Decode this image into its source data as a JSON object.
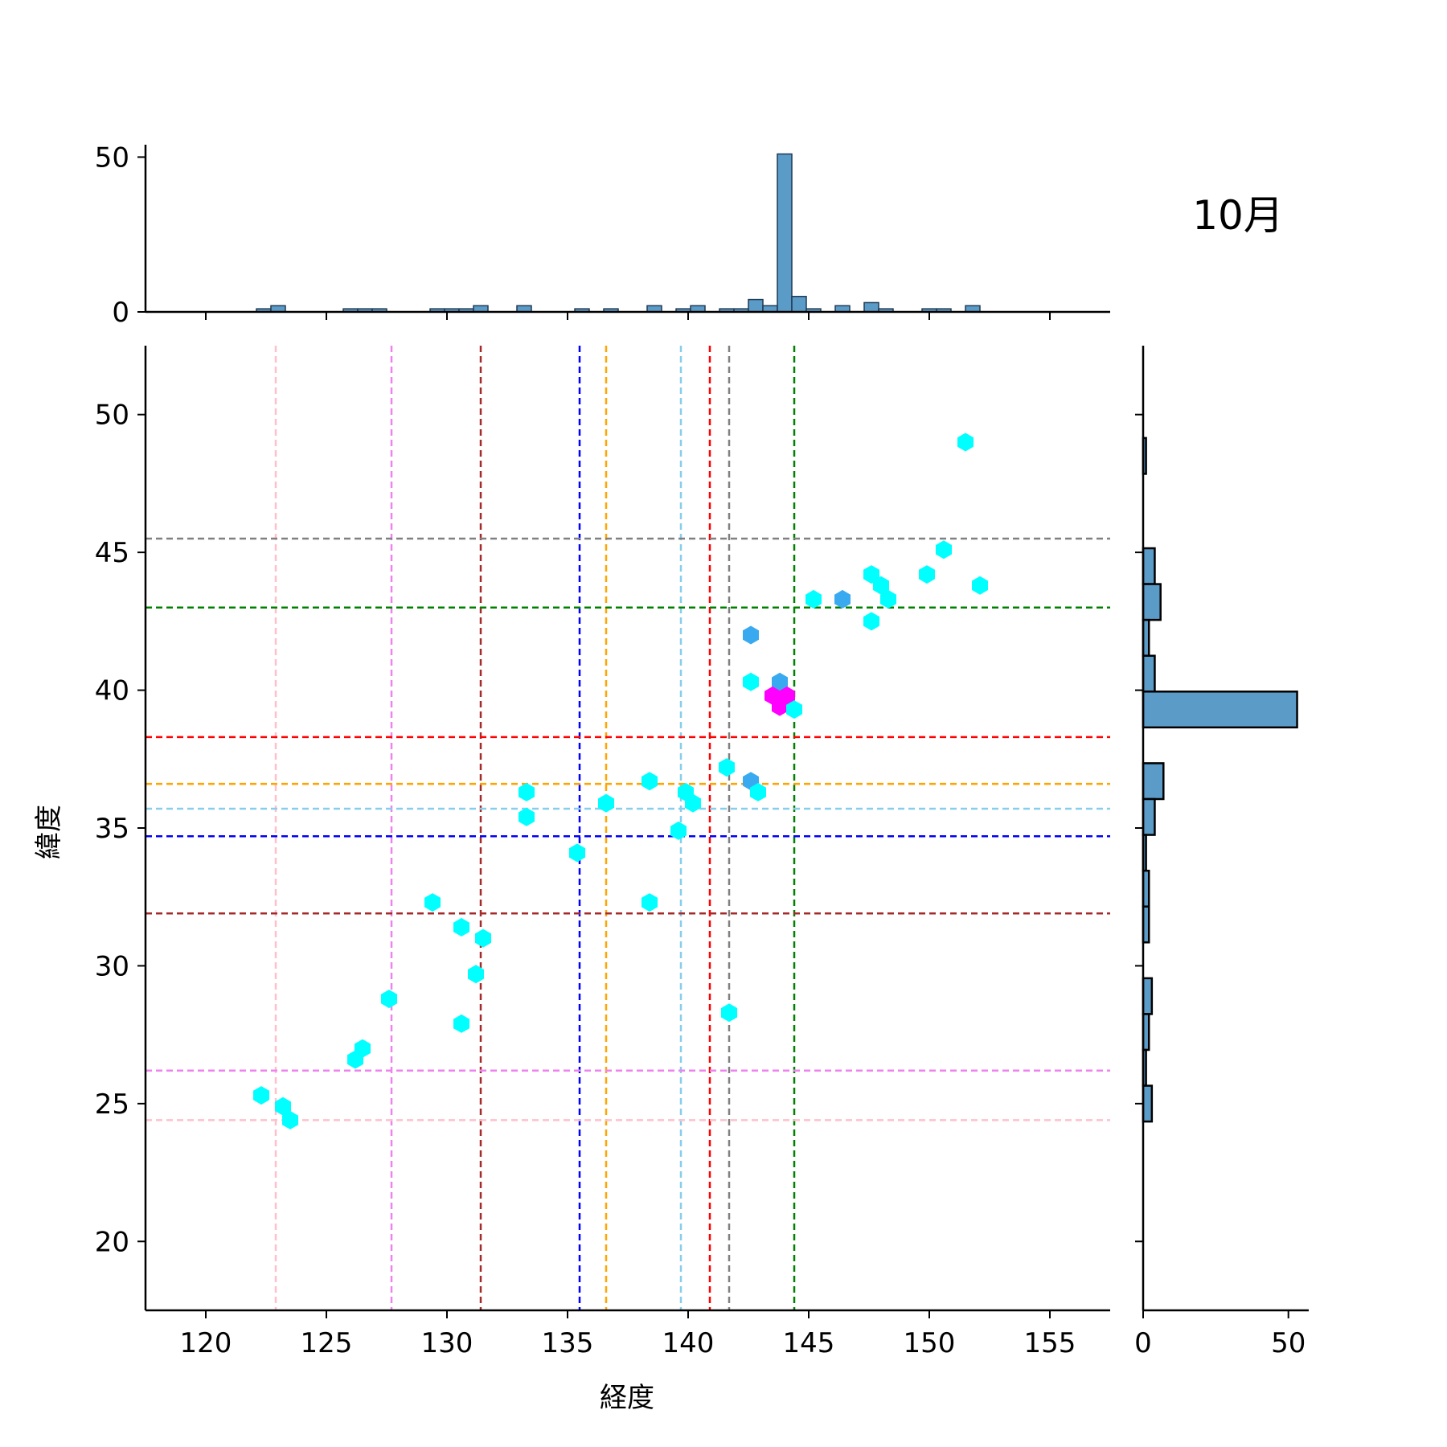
{
  "chart_data": {
    "type": "hexbin-joint",
    "title": "10月",
    "xlabel": "経度",
    "ylabel": "緯度",
    "xlim": [
      117.5,
      157.5
    ],
    "ylim": [
      17.5,
      52.5
    ],
    "x_ticks": [
      120,
      125,
      130,
      135,
      140,
      145,
      150,
      155
    ],
    "y_ticks": [
      20,
      25,
      30,
      35,
      40,
      45,
      50
    ],
    "top_hist": {
      "yticks": [
        0,
        50
      ],
      "bins": [
        [
          122.4,
          1
        ],
        [
          123.0,
          2
        ],
        [
          126.0,
          1
        ],
        [
          126.6,
          1
        ],
        [
          127.2,
          1
        ],
        [
          129.6,
          1
        ],
        [
          130.2,
          1
        ],
        [
          130.8,
          1
        ],
        [
          131.4,
          2
        ],
        [
          133.2,
          2
        ],
        [
          135.6,
          1
        ],
        [
          136.8,
          1
        ],
        [
          138.6,
          2
        ],
        [
          139.8,
          1
        ],
        [
          140.4,
          2
        ],
        [
          141.6,
          1
        ],
        [
          142.2,
          1
        ],
        [
          142.8,
          4
        ],
        [
          143.4,
          2
        ],
        [
          144.0,
          51
        ],
        [
          144.6,
          5
        ],
        [
          145.2,
          1
        ],
        [
          146.4,
          2
        ],
        [
          147.6,
          3
        ],
        [
          148.2,
          1
        ],
        [
          150.0,
          1
        ],
        [
          150.6,
          1
        ],
        [
          151.8,
          2
        ]
      ],
      "bin_width": 0.6
    },
    "right_hist": {
      "xticks": [
        0,
        50
      ],
      "bins": [
        [
          48.5,
          1
        ],
        [
          44.5,
          4
        ],
        [
          43.2,
          6
        ],
        [
          41.9,
          2
        ],
        [
          40.6,
          4
        ],
        [
          39.3,
          53
        ],
        [
          36.7,
          7
        ],
        [
          35.4,
          4
        ],
        [
          34.1,
          1
        ],
        [
          32.8,
          2
        ],
        [
          31.5,
          2
        ],
        [
          28.9,
          3
        ],
        [
          27.6,
          2
        ],
        [
          26.3,
          1
        ],
        [
          25.0,
          3
        ]
      ],
      "bin_height": 1.3
    },
    "hexbins": [
      [
        151.5,
        49.0,
        1
      ],
      [
        150.6,
        45.1,
        1
      ],
      [
        149.9,
        44.2,
        1
      ],
      [
        152.1,
        43.8,
        1
      ],
      [
        147.6,
        44.2,
        1
      ],
      [
        148.0,
        43.8,
        1
      ],
      [
        148.3,
        43.3,
        1
      ],
      [
        145.2,
        43.3,
        1
      ],
      [
        146.4,
        43.3,
        2
      ],
      [
        147.6,
        42.5,
        1
      ],
      [
        142.6,
        42.0,
        2
      ],
      [
        142.6,
        40.3,
        1
      ],
      [
        143.8,
        40.3,
        2
      ],
      [
        143.5,
        39.8,
        8
      ],
      [
        144.1,
        39.8,
        8
      ],
      [
        143.8,
        39.4,
        8
      ],
      [
        144.4,
        39.3,
        1
      ],
      [
        141.6,
        37.2,
        1
      ],
      [
        142.6,
        36.7,
        2
      ],
      [
        142.9,
        36.3,
        1
      ],
      [
        138.4,
        36.7,
        1
      ],
      [
        139.9,
        36.3,
        1
      ],
      [
        140.2,
        35.9,
        1
      ],
      [
        139.6,
        34.9,
        1
      ],
      [
        136.6,
        35.9,
        1
      ],
      [
        133.3,
        36.3,
        1
      ],
      [
        133.3,
        35.4,
        1
      ],
      [
        135.4,
        34.1,
        1
      ],
      [
        138.4,
        32.3,
        1
      ],
      [
        129.4,
        32.3,
        1
      ],
      [
        130.6,
        31.4,
        1
      ],
      [
        131.5,
        31.0,
        1
      ],
      [
        131.2,
        29.7,
        1
      ],
      [
        130.6,
        27.9,
        1
      ],
      [
        127.6,
        28.8,
        1
      ],
      [
        126.5,
        27.0,
        1
      ],
      [
        126.2,
        26.6,
        1
      ],
      [
        122.3,
        25.3,
        1
      ],
      [
        123.2,
        24.9,
        1
      ],
      [
        123.5,
        24.4,
        1
      ],
      [
        141.7,
        28.3,
        1
      ]
    ],
    "vlines": [
      {
        "x": 122.9,
        "color": "#ffc0cb"
      },
      {
        "x": 127.7,
        "color": "#ee82ee"
      },
      {
        "x": 131.4,
        "color": "#a52a2a"
      },
      {
        "x": 135.5,
        "color": "#0000ff"
      },
      {
        "x": 136.6,
        "color": "#ffa500"
      },
      {
        "x": 139.7,
        "color": "#87ceeb"
      },
      {
        "x": 140.9,
        "color": "#ff0000"
      },
      {
        "x": 141.7,
        "color": "#808080"
      },
      {
        "x": 144.4,
        "color": "#008000"
      }
    ],
    "hlines": [
      {
        "y": 45.5,
        "color": "#808080"
      },
      {
        "y": 43.0,
        "color": "#008000"
      },
      {
        "y": 38.3,
        "color": "#ff0000"
      },
      {
        "y": 36.6,
        "color": "#ffa500"
      },
      {
        "y": 35.7,
        "color": "#87ceeb"
      },
      {
        "y": 34.7,
        "color": "#0000ff"
      },
      {
        "y": 31.9,
        "color": "#a52a2a"
      },
      {
        "y": 26.2,
        "color": "#ee82ee"
      },
      {
        "y": 24.4,
        "color": "#ffc0cb"
      }
    ],
    "hist_color": "#5b9bc8",
    "hex_colors": {
      "low": "#00ffff",
      "mid": "#3aaaf0",
      "high": "#ff00ff"
    }
  }
}
